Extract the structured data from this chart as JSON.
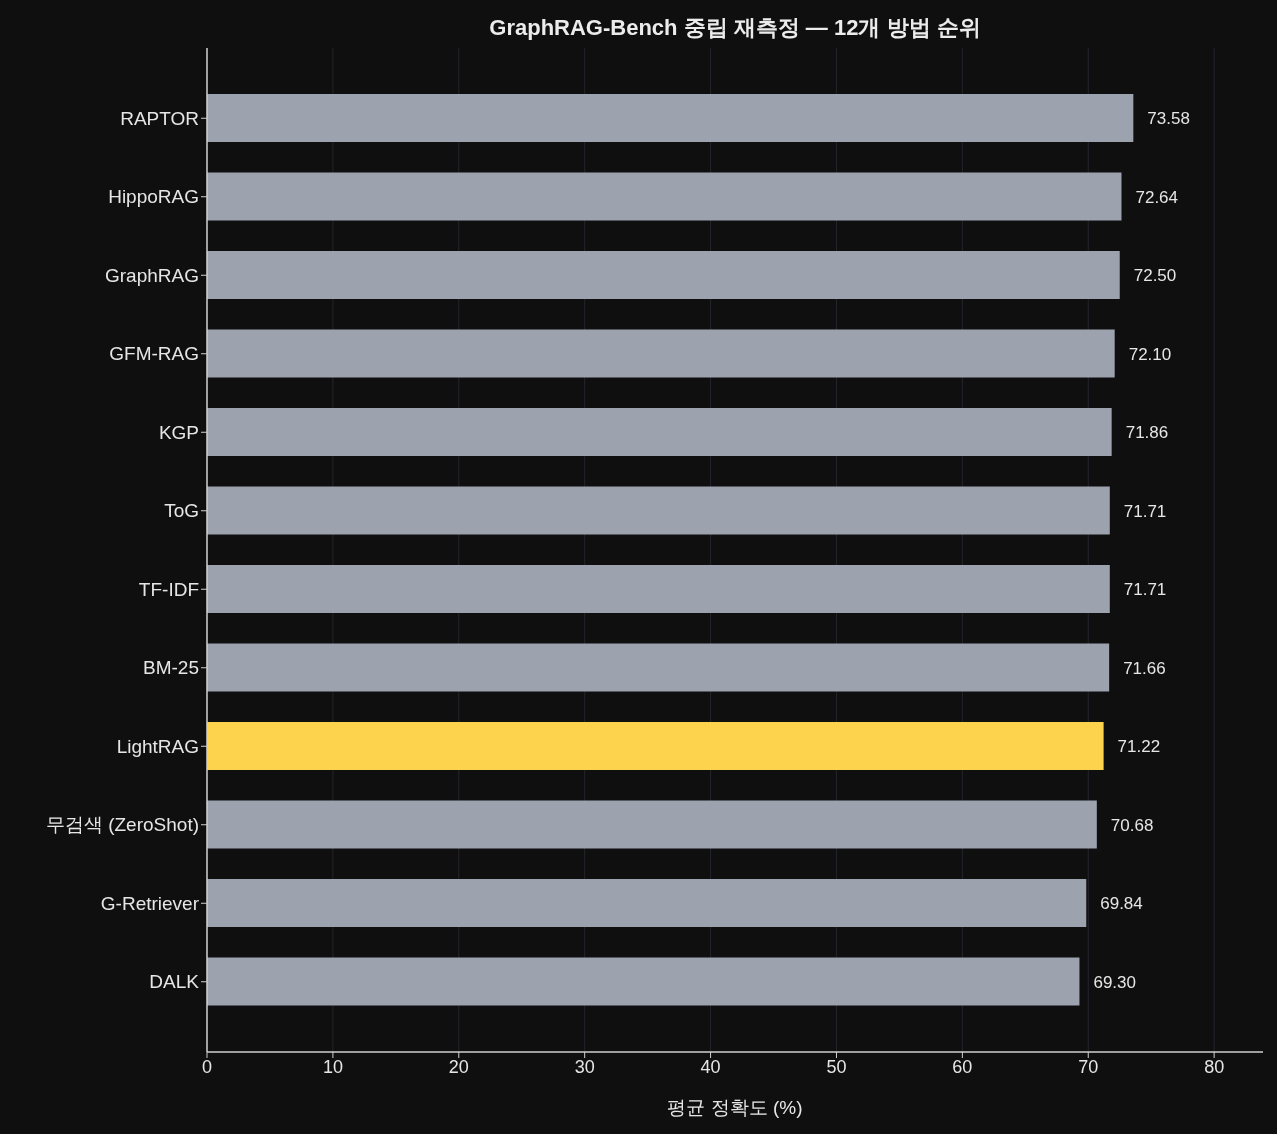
{
  "chart_data": {
    "type": "bar",
    "orientation": "horizontal",
    "title": "GraphRAG-Bench 중립 재측정 — 12개 방법 순위",
    "xlabel": "평균 정확도 (%)",
    "categories": [
      "RAPTOR",
      "HippoRAG",
      "GraphRAG",
      "GFM-RAG",
      "KGP",
      "ToG",
      "TF-IDF",
      "BM-25",
      "LightRAG",
      "무검색 (ZeroShot)",
      "G-Retriever",
      "DALK"
    ],
    "values": [
      73.58,
      72.64,
      72.5,
      72.1,
      71.86,
      71.71,
      71.71,
      71.66,
      71.22,
      70.68,
      69.84,
      69.3
    ],
    "colors": [
      "#9ca3af",
      "#9ca3af",
      "#9ca3af",
      "#9ca3af",
      "#9ca3af",
      "#9ca3af",
      "#9ca3af",
      "#9ca3af",
      "#fdd34d",
      "#9ca3af",
      "#9ca3af",
      "#9ca3af"
    ],
    "value_labels": [
      "73.58",
      "72.64",
      "72.50",
      "72.10",
      "71.86",
      "71.71",
      "71.71",
      "71.66",
      "71.22",
      "70.68",
      "69.84",
      "69.30"
    ],
    "xlim": [
      0,
      83.88
    ],
    "xticks": [
      0,
      10,
      20,
      30,
      40,
      50,
      60,
      70,
      80
    ],
    "grid": "x"
  }
}
